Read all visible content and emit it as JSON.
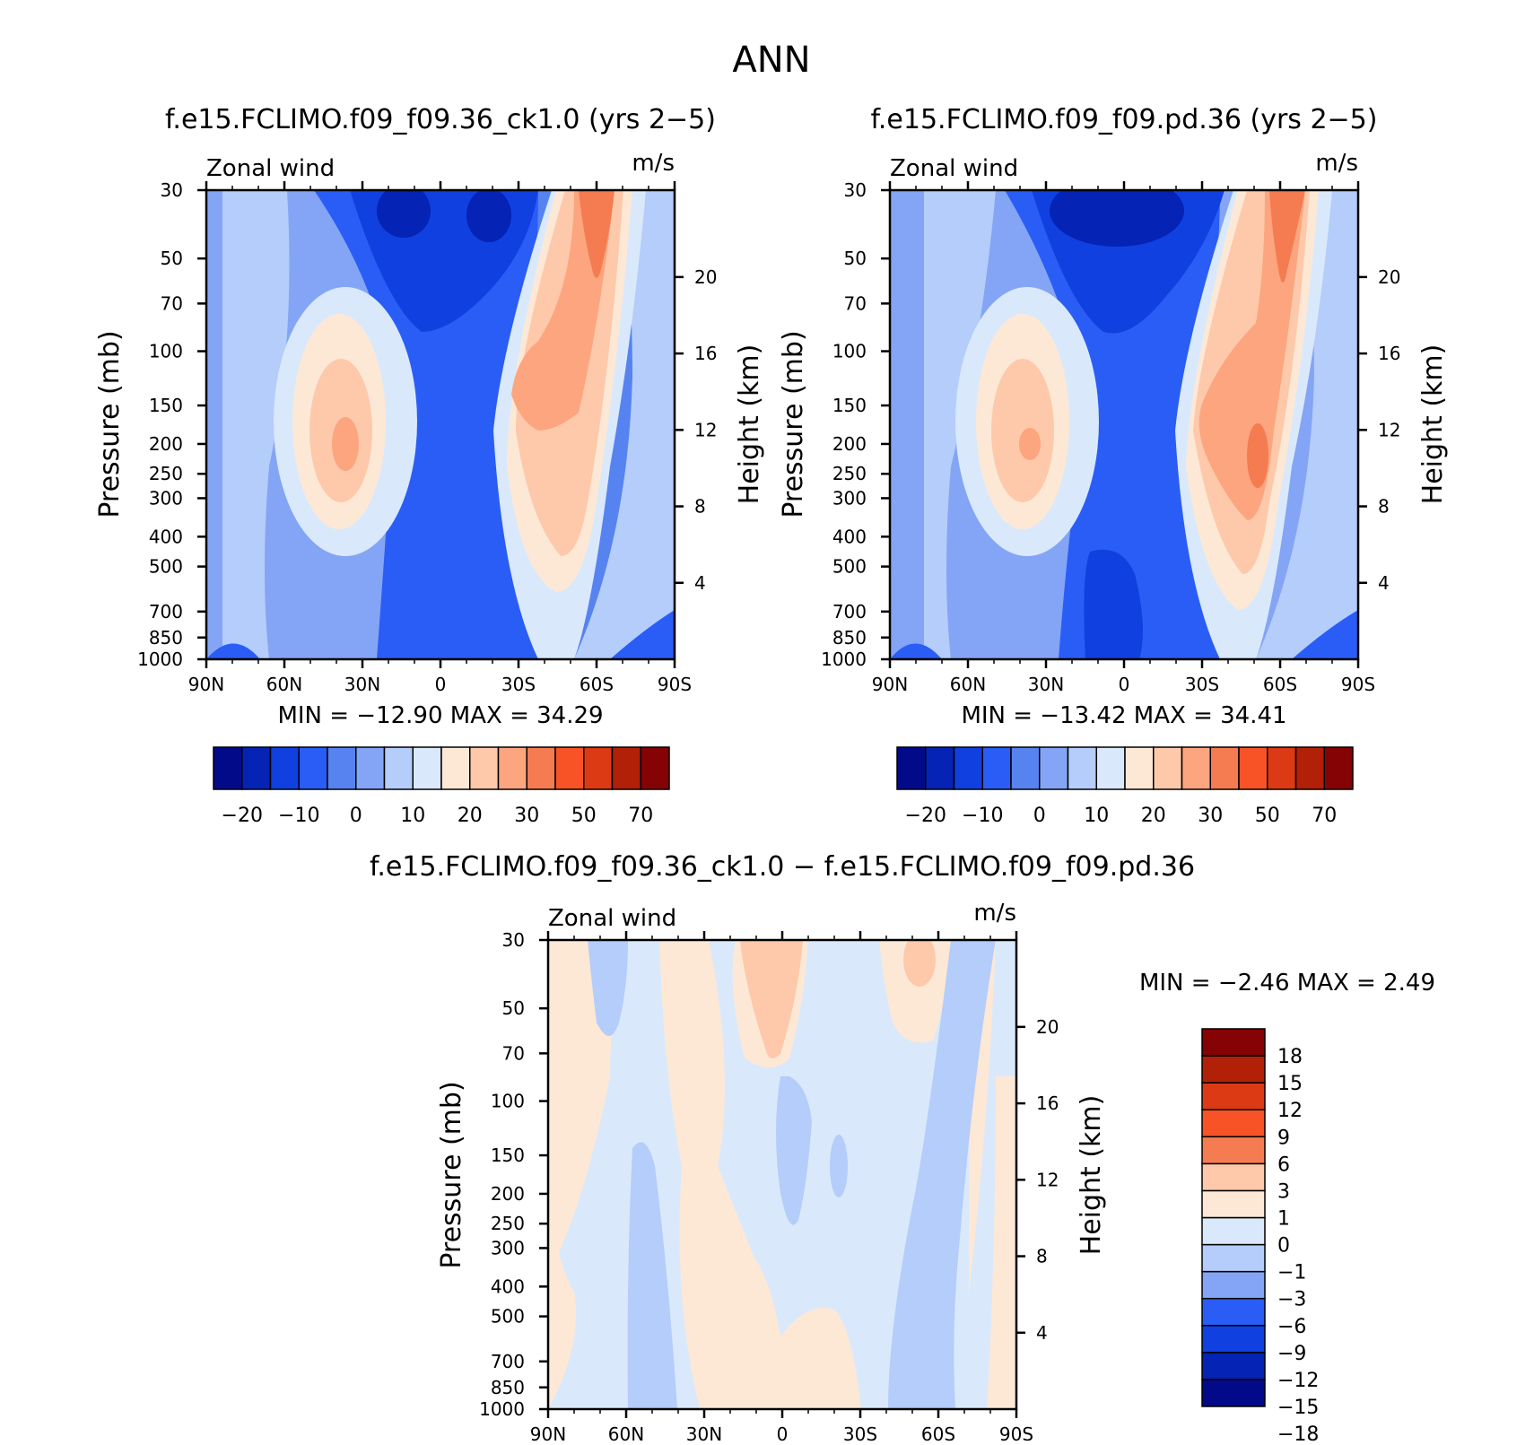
{
  "figure_title": "ANN",
  "chart_data": [
    {
      "id": "panel1",
      "type": "heatmap",
      "title": "f.e15.FCLIMO.f09_f09.36_ck1.0 (yrs 2−5)",
      "variable": "Zonal wind",
      "units": "m/s",
      "ylabel": "Pressure (mb)",
      "y2label": "Height (km)",
      "stats": "MIN = −12.90   MAX =   34.29",
      "x_ticks": [
        "90N",
        "60N",
        "30N",
        "0",
        "30S",
        "60S",
        "90S"
      ],
      "y_ticks": [
        "30",
        "50",
        "70",
        "100",
        "150",
        "200",
        "250",
        "300",
        "400",
        "500",
        "700",
        "850",
        "1000"
      ],
      "y_ticks_values": [
        30,
        50,
        70,
        100,
        150,
        200,
        250,
        300,
        400,
        500,
        700,
        850,
        1000
      ],
      "y2_ticks": [
        "4",
        "8",
        "12",
        "16",
        "20"
      ],
      "y2_ticks_values": [
        4,
        8,
        12,
        16,
        20
      ],
      "ylim": [
        1000,
        30
      ],
      "xlim": [
        90,
        -90
      ],
      "yscale": "log",
      "colorbar_ticks": [
        "−20",
        "−10",
        "0",
        "10",
        "20",
        "30",
        "50",
        "70"
      ],
      "colorbar_levels": [
        -25,
        -20,
        -15,
        -10,
        -5,
        0,
        5,
        10,
        15,
        20,
        25,
        30,
        40,
        50,
        60,
        70,
        80
      ]
    },
    {
      "id": "panel2",
      "type": "heatmap",
      "title": "f.e15.FCLIMO.f09_f09.pd.36 (yrs 2−5)",
      "variable": "Zonal wind",
      "units": "m/s",
      "ylabel": "Pressure (mb)",
      "y2label": "Height (km)",
      "stats": "MIN = −13.42   MAX =   34.41",
      "x_ticks": [
        "90N",
        "60N",
        "30N",
        "0",
        "30S",
        "60S",
        "90S"
      ],
      "y_ticks": [
        "30",
        "50",
        "70",
        "100",
        "150",
        "200",
        "250",
        "300",
        "400",
        "500",
        "700",
        "850",
        "1000"
      ],
      "y_ticks_values": [
        30,
        50,
        70,
        100,
        150,
        200,
        250,
        300,
        400,
        500,
        700,
        850,
        1000
      ],
      "y2_ticks": [
        "4",
        "8",
        "12",
        "16",
        "20"
      ],
      "y2_ticks_values": [
        4,
        8,
        12,
        16,
        20
      ],
      "ylim": [
        1000,
        30
      ],
      "xlim": [
        90,
        -90
      ],
      "yscale": "log",
      "colorbar_ticks": [
        "−20",
        "−10",
        "0",
        "10",
        "20",
        "30",
        "50",
        "70"
      ],
      "colorbar_levels": [
        -25,
        -20,
        -15,
        -10,
        -5,
        0,
        5,
        10,
        15,
        20,
        25,
        30,
        40,
        50,
        60,
        70,
        80
      ]
    },
    {
      "id": "panel3",
      "type": "heatmap",
      "title": "f.e15.FCLIMO.f09_f09.36_ck1.0 − f.e15.FCLIMO.f09_f09.pd.36",
      "variable": "Zonal wind",
      "units": "m/s",
      "ylabel": "Pressure (mb)",
      "y2label": "Height (km)",
      "stats": "MIN =    −2.46   MAX =     2.49",
      "x_ticks": [
        "90N",
        "60N",
        "30N",
        "0",
        "30S",
        "60S",
        "90S"
      ],
      "y_ticks": [
        "30",
        "50",
        "70",
        "100",
        "150",
        "200",
        "250",
        "300",
        "400",
        "500",
        "700",
        "850",
        "1000"
      ],
      "y_ticks_values": [
        30,
        50,
        70,
        100,
        150,
        200,
        250,
        300,
        400,
        500,
        700,
        850,
        1000
      ],
      "y2_ticks": [
        "4",
        "8",
        "12",
        "16",
        "20"
      ],
      "y2_ticks_values": [
        4,
        8,
        12,
        16,
        20
      ],
      "ylim": [
        1000,
        30
      ],
      "xlim": [
        90,
        -90
      ],
      "yscale": "log",
      "colorbar_ticks": [
        "18",
        "15",
        "12",
        "9",
        "6",
        "3",
        "1",
        "0",
        "−1",
        "−3",
        "−6",
        "−9",
        "−12",
        "−15",
        "−18"
      ],
      "colorbar_levels": [
        -18,
        -15,
        -12,
        -9,
        -6,
        -3,
        -1,
        0,
        1,
        3,
        6,
        9,
        12,
        15,
        18
      ]
    }
  ],
  "colors": {
    "main_palette": [
      "#020a8a",
      "#0523b4",
      "#1140e0",
      "#2a5df5",
      "#5783f0",
      "#84a5f5",
      "#b4cdfa",
      "#d9e9fb",
      "#fde8d6",
      "#fdc9aa",
      "#fca57f",
      "#f57b51",
      "#f75326",
      "#dc3a14",
      "#b22008",
      "#850205"
    ],
    "diff_palette": [
      "#020a8a",
      "#0523b4",
      "#1140e0",
      "#2a5df5",
      "#84a5f5",
      "#b4cdfa",
      "#d9e9fb",
      "#fde8d6",
      "#fdc9aa",
      "#f57b51",
      "#f75326",
      "#dc3a14",
      "#b22008",
      "#850205"
    ]
  }
}
